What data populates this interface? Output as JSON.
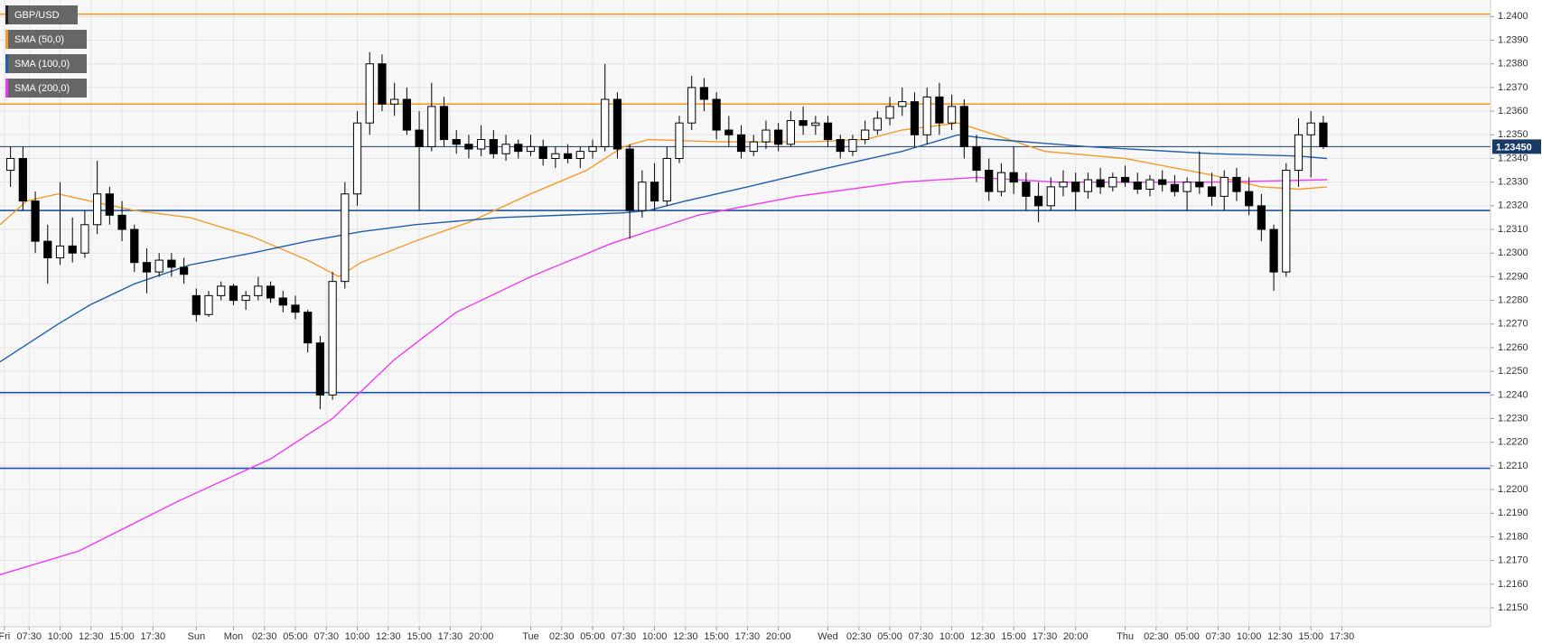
{
  "chart_data": {
    "type": "candlestick",
    "symbol": "GBP/USD",
    "symbol_color": "#222222",
    "up_color": "#ffffff",
    "down_color": "#000000",
    "ylim": [
      1.2142,
      1.2407
    ],
    "grid": true,
    "yticks": [
      {
        "value": 1.215,
        "label": "1.2150"
      },
      {
        "value": 1.216,
        "label": "1.2160"
      },
      {
        "value": 1.217,
        "label": "1.2170"
      },
      {
        "value": 1.218,
        "label": "1.2180"
      },
      {
        "value": 1.219,
        "label": "1.2190"
      },
      {
        "value": 1.22,
        "label": "1.2200"
      },
      {
        "value": 1.221,
        "label": "1.2210"
      },
      {
        "value": 1.222,
        "label": "1.2220"
      },
      {
        "value": 1.223,
        "label": "1.2230"
      },
      {
        "value": 1.224,
        "label": "1.2240"
      },
      {
        "value": 1.225,
        "label": "1.2250"
      },
      {
        "value": 1.226,
        "label": "1.2260"
      },
      {
        "value": 1.227,
        "label": "1.2270"
      },
      {
        "value": 1.228,
        "label": "1.2280"
      },
      {
        "value": 1.229,
        "label": "1.2290"
      },
      {
        "value": 1.23,
        "label": "1.2300"
      },
      {
        "value": 1.231,
        "label": "1.2310"
      },
      {
        "value": 1.232,
        "label": "1.2320"
      },
      {
        "value": 1.233,
        "label": "1.2330"
      },
      {
        "value": 1.234,
        "label": "1.2340"
      },
      {
        "value": 1.235,
        "label": "1.2350"
      },
      {
        "value": 1.236,
        "label": "1.2360"
      },
      {
        "value": 1.237,
        "label": "1.2370"
      },
      {
        "value": 1.238,
        "label": "1.2380"
      },
      {
        "value": 1.239,
        "label": "1.2390"
      },
      {
        "value": 1.24,
        "label": "1.2400"
      }
    ],
    "xlim": [
      -0.7,
      240
    ],
    "xticks": [
      {
        "value": 0,
        "label": "Fri"
      },
      {
        "value": 4,
        "label": "07:30"
      },
      {
        "value": 9,
        "label": "10:00"
      },
      {
        "value": 14,
        "label": "12:30"
      },
      {
        "value": 19,
        "label": "15:00"
      },
      {
        "value": 24,
        "label": "17:30"
      },
      {
        "value": 31,
        "label": "Sun"
      },
      {
        "value": 37,
        "label": "Mon"
      },
      {
        "value": 42,
        "label": "02:30"
      },
      {
        "value": 47,
        "label": "05:00"
      },
      {
        "value": 52,
        "label": "07:30"
      },
      {
        "value": 57,
        "label": "10:00"
      },
      {
        "value": 62,
        "label": "12:30"
      },
      {
        "value": 67,
        "label": "15:00"
      },
      {
        "value": 72,
        "label": "17:30"
      },
      {
        "value": 77,
        "label": "20:00"
      },
      {
        "value": 85,
        "label": "Tue"
      },
      {
        "value": 90,
        "label": "02:30"
      },
      {
        "value": 95,
        "label": "05:00"
      },
      {
        "value": 100,
        "label": "07:30"
      },
      {
        "value": 105,
        "label": "10:00"
      },
      {
        "value": 110,
        "label": "12:30"
      },
      {
        "value": 115,
        "label": "15:00"
      },
      {
        "value": 120,
        "label": "17:30"
      },
      {
        "value": 125,
        "label": "20:00"
      },
      {
        "value": 133,
        "label": "Wed"
      },
      {
        "value": 138,
        "label": "02:30"
      },
      {
        "value": 143,
        "label": "05:00"
      },
      {
        "value": 148,
        "label": "07:30"
      },
      {
        "value": 153,
        "label": "10:00"
      },
      {
        "value": 158,
        "label": "12:30"
      },
      {
        "value": 163,
        "label": "15:00"
      },
      {
        "value": 168,
        "label": "17:30"
      },
      {
        "value": 173,
        "label": "20:00"
      },
      {
        "value": 181,
        "label": "Thu"
      },
      {
        "value": 186,
        "label": "02:30"
      },
      {
        "value": 191,
        "label": "05:00"
      },
      {
        "value": 196,
        "label": "07:30"
      },
      {
        "value": 201,
        "label": "10:00"
      },
      {
        "value": 206,
        "label": "12:30"
      },
      {
        "value": 211,
        "label": "15:00"
      },
      {
        "value": 216,
        "label": "17:30"
      }
    ],
    "x": [
      1,
      3,
      5,
      7,
      9,
      11,
      13,
      15,
      17,
      19,
      21,
      23,
      25,
      27,
      29,
      31,
      33,
      35,
      37,
      39,
      41,
      43,
      45,
      47,
      49,
      51,
      53,
      55,
      57,
      59,
      61,
      63,
      65,
      67,
      69,
      71,
      73,
      75,
      77,
      79,
      81,
      83,
      85,
      87,
      89,
      91,
      93,
      95,
      97,
      99,
      101,
      103,
      105,
      107,
      109,
      111,
      113,
      115,
      117,
      119,
      121,
      123,
      125,
      127,
      129,
      131,
      133,
      135,
      137,
      139,
      141,
      143,
      145,
      147,
      149,
      151,
      153,
      155,
      157,
      159,
      161,
      163,
      165,
      167,
      169,
      171,
      173,
      175,
      177,
      179,
      181,
      183,
      185,
      187,
      189,
      191,
      193,
      195,
      197,
      199,
      201,
      203,
      205,
      207,
      209,
      211,
      213
    ],
    "candles": [
      [
        1.2335,
        1.2345,
        1.2328,
        1.234
      ],
      [
        1.234,
        1.2345,
        1.2318,
        1.2322
      ],
      [
        1.2322,
        1.2326,
        1.23,
        1.2305
      ],
      [
        1.2305,
        1.2312,
        1.2287,
        1.2298
      ],
      [
        1.2298,
        1.233,
        1.2295,
        1.2303
      ],
      [
        1.2303,
        1.2315,
        1.2296,
        1.23
      ],
      [
        1.23,
        1.2318,
        1.2298,
        1.2312
      ],
      [
        1.2312,
        1.2339,
        1.2308,
        1.2325
      ],
      [
        1.2325,
        1.2328,
        1.2312,
        1.2316
      ],
      [
        1.2316,
        1.2322,
        1.2305,
        1.231
      ],
      [
        1.231,
        1.2312,
        1.2292,
        1.2296
      ],
      [
        1.2296,
        1.2302,
        1.2283,
        1.2292
      ],
      [
        1.2292,
        1.23,
        1.229,
        1.2297
      ],
      [
        1.2297,
        1.23,
        1.229,
        1.2294
      ],
      [
        1.2294,
        1.2298,
        1.2287,
        1.2291
      ],
      [
        1.2282,
        1.2285,
        1.2271,
        1.2274
      ],
      [
        1.2274,
        1.2284,
        1.2273,
        1.2282
      ],
      [
        1.2282,
        1.2288,
        1.228,
        1.2286
      ],
      [
        1.2286,
        1.2287,
        1.2278,
        1.228
      ],
      [
        1.228,
        1.2284,
        1.2276,
        1.2282
      ],
      [
        1.2282,
        1.229,
        1.228,
        1.2286
      ],
      [
        1.2286,
        1.2288,
        1.2279,
        1.2281
      ],
      [
        1.2281,
        1.2284,
        1.2275,
        1.2278
      ],
      [
        1.2278,
        1.2282,
        1.2272,
        1.2275
      ],
      [
        1.2275,
        1.2276,
        1.2258,
        1.2262
      ],
      [
        1.2262,
        1.2265,
        1.2234,
        1.224
      ],
      [
        1.224,
        1.2292,
        1.2238,
        1.2288
      ],
      [
        1.2288,
        1.233,
        1.2285,
        1.2325
      ],
      [
        1.2325,
        1.236,
        1.232,
        1.2355
      ],
      [
        1.2355,
        1.2385,
        1.235,
        1.238
      ],
      [
        1.238,
        1.2384,
        1.236,
        1.2363
      ],
      [
        1.2363,
        1.2372,
        1.2358,
        1.2365
      ],
      [
        1.2365,
        1.237,
        1.235,
        1.2352
      ],
      [
        1.2352,
        1.236,
        1.2318,
        1.2345
      ],
      [
        1.2345,
        1.2372,
        1.2343,
        1.2362
      ],
      [
        1.2362,
        1.2366,
        1.2345,
        1.2348
      ],
      [
        1.2348,
        1.2352,
        1.2342,
        1.2346
      ],
      [
        1.2346,
        1.235,
        1.234,
        1.2344
      ],
      [
        1.2344,
        1.2354,
        1.2341,
        1.2348
      ],
      [
        1.2348,
        1.2352,
        1.234,
        1.2342
      ],
      [
        1.2342,
        1.235,
        1.2339,
        1.2346
      ],
      [
        1.2346,
        1.2348,
        1.234,
        1.2343
      ],
      [
        1.2343,
        1.235,
        1.2341,
        1.2345
      ],
      [
        1.2345,
        1.2348,
        1.2337,
        1.234
      ],
      [
        1.234,
        1.2345,
        1.2336,
        1.2342
      ],
      [
        1.2342,
        1.2346,
        1.2338,
        1.234
      ],
      [
        1.234,
        1.2345,
        1.2336,
        1.2343
      ],
      [
        1.2343,
        1.2348,
        1.234,
        1.2345
      ],
      [
        1.2345,
        1.238,
        1.2343,
        1.2365
      ],
      [
        1.2365,
        1.2368,
        1.234,
        1.2344
      ],
      [
        1.2344,
        1.2346,
        1.2306,
        1.2318
      ],
      [
        1.2318,
        1.2335,
        1.2315,
        1.233
      ],
      [
        1.233,
        1.2338,
        1.2318,
        1.2322
      ],
      [
        1.2322,
        1.2345,
        1.232,
        1.234
      ],
      [
        1.234,
        1.2358,
        1.2338,
        1.2355
      ],
      [
        1.2355,
        1.2375,
        1.2352,
        1.237
      ],
      [
        1.237,
        1.2374,
        1.236,
        1.2365
      ],
      [
        1.2365,
        1.2368,
        1.2348,
        1.2352
      ],
      [
        1.2352,
        1.2358,
        1.2345,
        1.235
      ],
      [
        1.235,
        1.2354,
        1.234,
        1.2343
      ],
      [
        1.2343,
        1.235,
        1.2341,
        1.2347
      ],
      [
        1.2347,
        1.2356,
        1.2344,
        1.2352
      ],
      [
        1.2352,
        1.2355,
        1.2343,
        1.2346
      ],
      [
        1.2346,
        1.236,
        1.2345,
        1.2356
      ],
      [
        1.2356,
        1.2362,
        1.235,
        1.2354
      ],
      [
        1.2354,
        1.2358,
        1.235,
        1.2355
      ],
      [
        1.2355,
        1.2358,
        1.2345,
        1.2348
      ],
      [
        1.2348,
        1.235,
        1.234,
        1.2343
      ],
      [
        1.2343,
        1.235,
        1.2341,
        1.2348
      ],
      [
        1.2348,
        1.2356,
        1.2346,
        1.2352
      ],
      [
        1.2352,
        1.236,
        1.235,
        1.2357
      ],
      [
        1.2357,
        1.2366,
        1.2354,
        1.2362
      ],
      [
        1.2362,
        1.237,
        1.2358,
        1.2364
      ],
      [
        1.2364,
        1.2368,
        1.2345,
        1.235
      ],
      [
        1.235,
        1.237,
        1.2346,
        1.2366
      ],
      [
        1.2366,
        1.2372,
        1.235,
        1.2355
      ],
      [
        1.2355,
        1.2367,
        1.2352,
        1.2362
      ],
      [
        1.2362,
        1.2365,
        1.234,
        1.2345
      ],
      [
        1.2345,
        1.235,
        1.233,
        1.2335
      ],
      [
        1.2335,
        1.234,
        1.2322,
        1.2326
      ],
      [
        1.2326,
        1.2338,
        1.2324,
        1.2334
      ],
      [
        1.2334,
        1.2345,
        1.2325,
        1.233
      ],
      [
        1.233,
        1.2334,
        1.2318,
        1.2324
      ],
      [
        1.2324,
        1.233,
        1.2313,
        1.232
      ],
      [
        1.232,
        1.2332,
        1.2318,
        1.2328
      ],
      [
        1.2328,
        1.2335,
        1.2324,
        1.233
      ],
      [
        1.233,
        1.2334,
        1.2318,
        1.2326
      ],
      [
        1.2326,
        1.2334,
        1.2323,
        1.2331
      ],
      [
        1.2331,
        1.2336,
        1.2325,
        1.2328
      ],
      [
        1.2328,
        1.2334,
        1.2326,
        1.2332
      ],
      [
        1.2332,
        1.2337,
        1.2328,
        1.233
      ],
      [
        1.233,
        1.2334,
        1.2325,
        1.2327
      ],
      [
        1.2327,
        1.2333,
        1.2324,
        1.2331
      ],
      [
        1.2331,
        1.2335,
        1.2326,
        1.2329
      ],
      [
        1.2329,
        1.2333,
        1.2324,
        1.2326
      ],
      [
        1.2326,
        1.2332,
        1.2318,
        1.233
      ],
      [
        1.233,
        1.2343,
        1.2325,
        1.2328
      ],
      [
        1.2328,
        1.2334,
        1.232,
        1.2324
      ],
      [
        1.2324,
        1.2335,
        1.2318,
        1.2332
      ],
      [
        1.2332,
        1.2336,
        1.2322,
        1.2326
      ],
      [
        1.2326,
        1.2332,
        1.2316,
        1.232
      ],
      [
        1.232,
        1.2325,
        1.2305,
        1.231
      ],
      [
        1.231,
        1.2312,
        1.2284,
        1.2292
      ],
      [
        1.2292,
        1.2338,
        1.229,
        1.2335
      ],
      [
        1.2335,
        1.2357,
        1.2328,
        1.235
      ],
      [
        1.235,
        1.236,
        1.2332,
        1.2355
      ],
      [
        1.2355,
        1.2358,
        1.2344,
        1.2345
      ]
    ],
    "series": [
      {
        "name": "SMA (50,0)",
        "color": "#f39c2c",
        "x": [
          -0.7,
          3.6,
          8.7,
          13.8,
          21,
          30,
          40,
          49,
          54,
          57.6,
          66.3,
          75,
          85,
          94,
          100,
          104,
          116,
          130,
          139,
          145,
          154,
          160,
          168,
          181,
          195,
          203,
          209,
          213.6
        ],
        "values": [
          1.2312,
          1.2322,
          1.2325,
          1.2322,
          1.2318,
          1.2315,
          1.2307,
          1.2297,
          1.229,
          1.2296,
          1.2305,
          1.2313,
          1.2325,
          1.2335,
          1.2345,
          1.2348,
          1.2347,
          1.2347,
          1.2348,
          1.2352,
          1.2355,
          1.235,
          1.2343,
          1.234,
          1.2333,
          1.2328,
          1.2327,
          1.2328
        ]
      },
      {
        "name": "SMA (100,0)",
        "color": "#2060a8",
        "x": [
          -0.7,
          8.7,
          13.8,
          21,
          30,
          40,
          49,
          57.6,
          66.3,
          80,
          100,
          104,
          110,
          120,
          133,
          145,
          154,
          160,
          175,
          195,
          209,
          213.6
        ],
        "values": [
          1.2254,
          1.227,
          1.2278,
          1.2287,
          1.2295,
          1.23,
          1.2305,
          1.2309,
          1.2312,
          1.2315,
          1.2317,
          1.2318,
          1.2322,
          1.2328,
          1.2336,
          1.2343,
          1.235,
          1.2348,
          1.2345,
          1.2342,
          1.2341,
          1.234
        ]
      },
      {
        "name": "SMA (200,0)",
        "color": "#f03cf0",
        "x": [
          -0.7,
          12,
          28,
          43,
          53,
          63,
          73,
          85,
          98,
          112,
          128,
          145,
          157,
          170,
          195,
          213.6
        ],
        "values": [
          1.2164,
          1.2174,
          1.2195,
          1.2213,
          1.223,
          1.2255,
          1.2275,
          1.229,
          1.2304,
          1.2316,
          1.2324,
          1.233,
          1.2332,
          1.233,
          1.233,
          1.2331
        ]
      }
    ],
    "levels": [
      {
        "value": 1.2401,
        "color": "#f39c2c"
      },
      {
        "value": 1.2363,
        "color": "#f39c2c"
      },
      {
        "value": 1.2318,
        "color": "#1c55a0"
      },
      {
        "value": 1.2241,
        "color": "#1c55a0"
      },
      {
        "value": 1.2209,
        "color": "#1c55a0"
      }
    ],
    "last_price": {
      "value": 1.2345,
      "label": "1.23450",
      "color": "#1a3a66"
    }
  }
}
